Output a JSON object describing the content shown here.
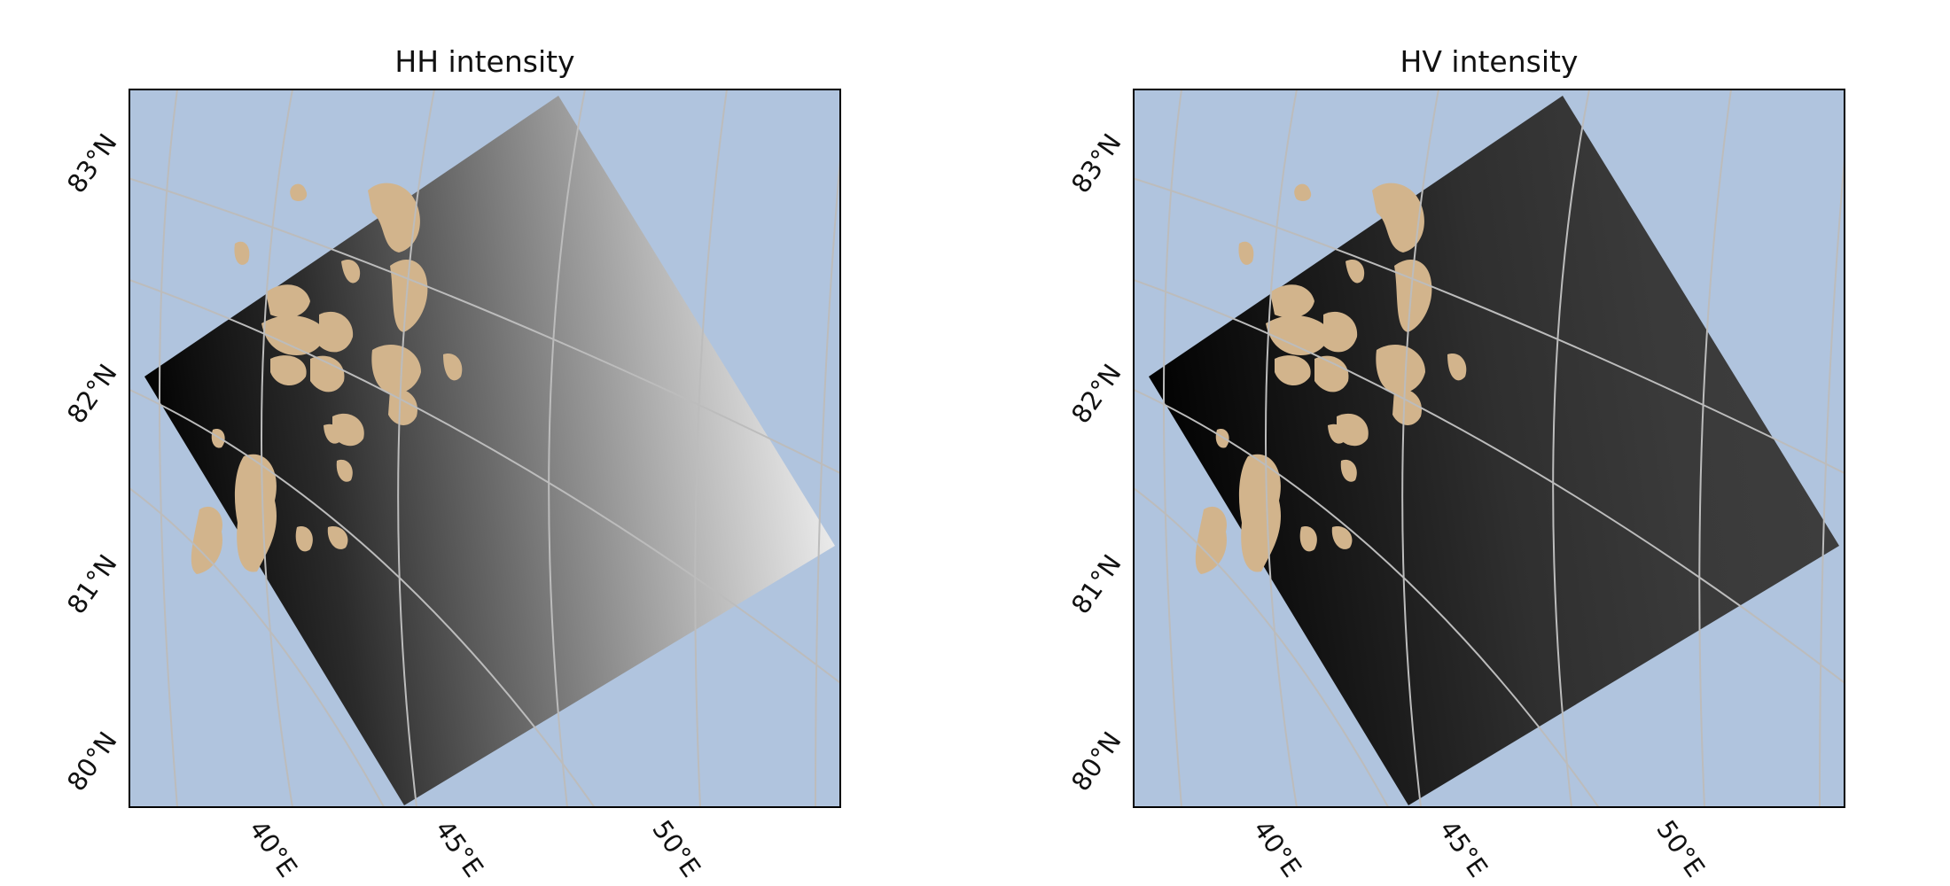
{
  "panels": [
    {
      "id": "hh",
      "title": "HH intensity",
      "lat_labels": [
        "83°N",
        "82°N",
        "81°N",
        "80°N"
      ],
      "lon_labels": [
        "40°E",
        "45°E",
        "50°E"
      ],
      "image_gradient": [
        "#000000",
        "#2b2b2b",
        "#6e6e6e",
        "#b4b4b4",
        "#f5f5f5"
      ]
    },
    {
      "id": "hv",
      "title": "HV intensity",
      "lat_labels": [
        "83°N",
        "82°N",
        "81°N",
        "80°N"
      ],
      "lon_labels": [
        "40°E",
        "45°E",
        "50°E"
      ],
      "image_gradient": [
        "#000000",
        "#181818",
        "#2f2f2f",
        "#3a3a3a",
        "#3e3e3e"
      ]
    }
  ],
  "colors": {
    "ocean": "#b0c4de",
    "land": "#d2b48c",
    "gridline": "#bcbcbc",
    "gridline_over_image": "#c4c4c4",
    "frame": "#000000"
  }
}
